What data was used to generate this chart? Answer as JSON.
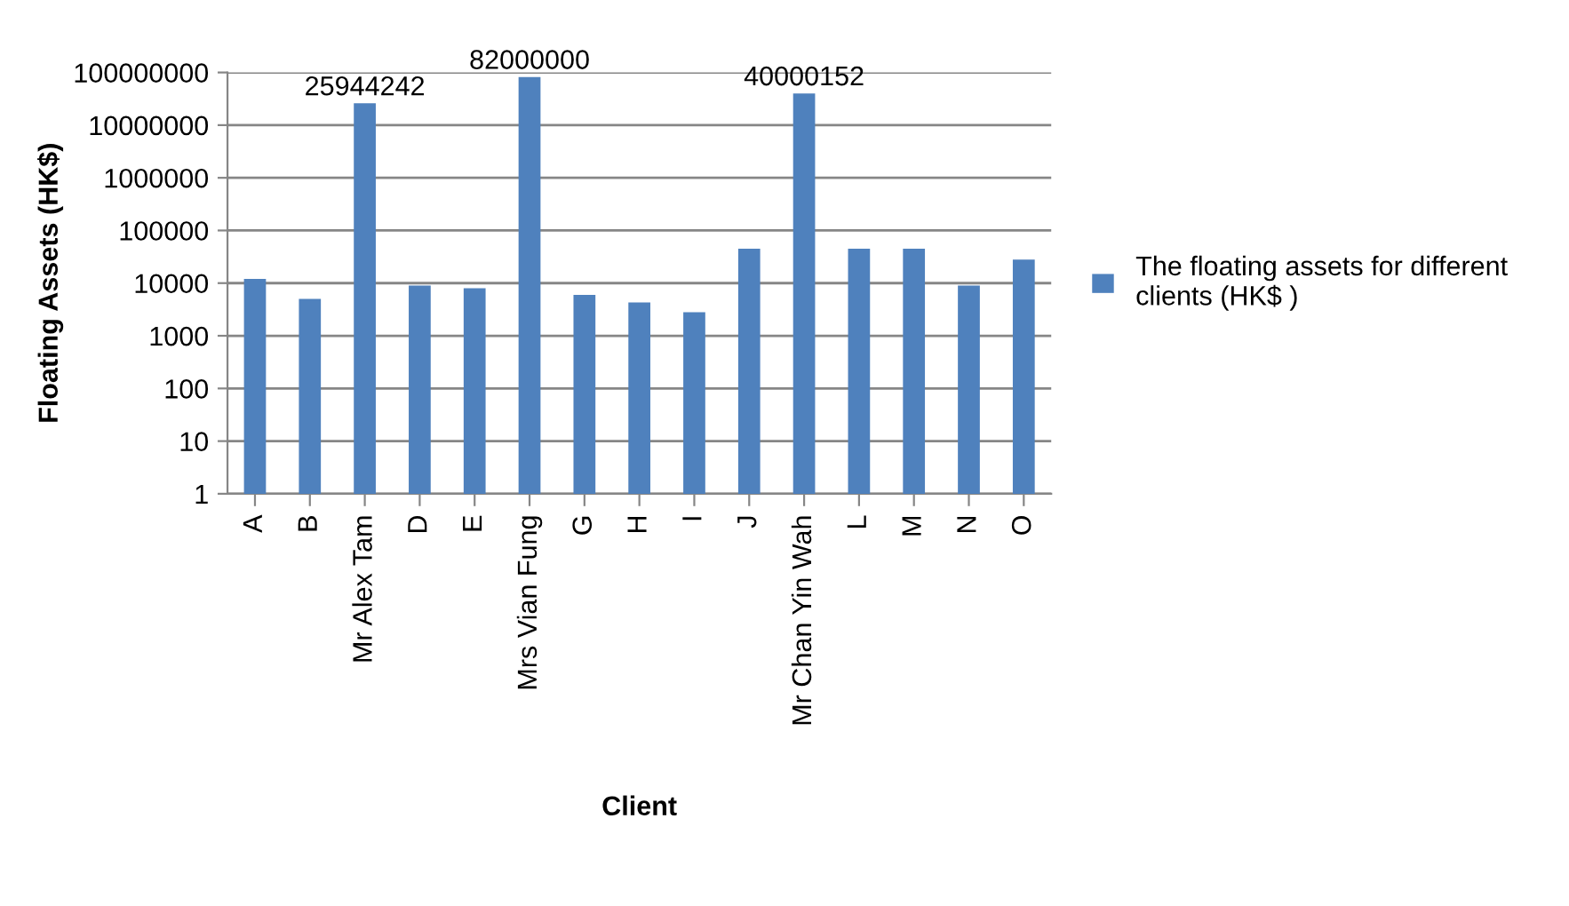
{
  "chart_data": {
    "type": "bar",
    "xlabel": "Client",
    "ylabel": "Floating Assets (HK$)",
    "categories": [
      "A",
      "B",
      "Mr Alex Tam",
      "D",
      "E",
      "Mrs Vian Fung",
      "G",
      "H",
      "I",
      "J",
      "Mr Chan Yin Wah",
      "L",
      "M",
      "N",
      "O"
    ],
    "series": [
      {
        "name": "The floating assets for different clients (HK$ )",
        "color": "#4f81bd",
        "values": [
          12000,
          5000,
          25944242,
          9000,
          8000,
          82000000,
          6000,
          4300,
          2800,
          45000,
          40000152,
          45000,
          45000,
          9000,
          28000
        ],
        "value_labels": [
          null,
          null,
          "25944242",
          null,
          null,
          "82000000",
          null,
          null,
          null,
          null,
          "40000152",
          null,
          null,
          null,
          null
        ]
      }
    ],
    "log": true,
    "ylim": [
      1,
      100000000
    ],
    "yticks": [
      1,
      10,
      100,
      1000,
      10000,
      100000,
      1000000,
      10000000,
      100000000
    ],
    "grid": "y",
    "legend": "right"
  }
}
